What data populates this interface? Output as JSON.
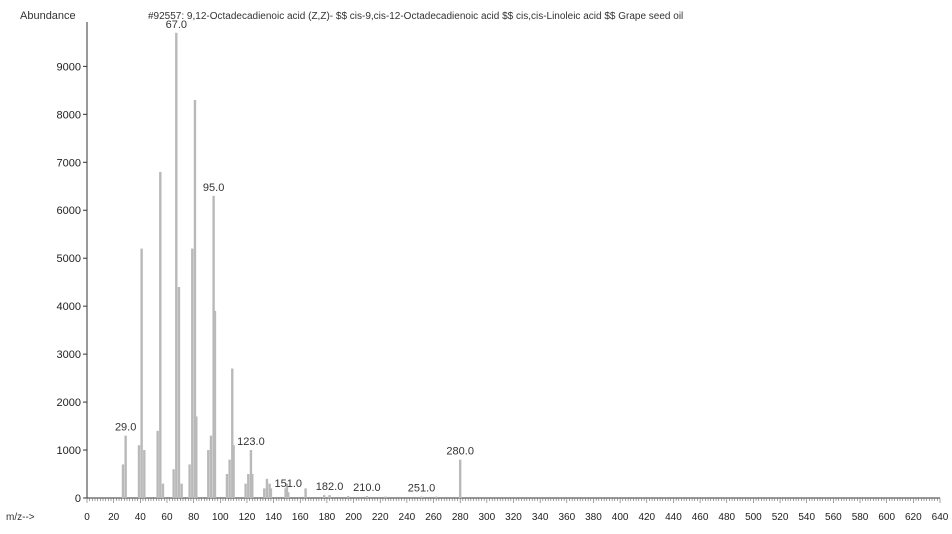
{
  "chart_data": {
    "type": "bar",
    "title": "#92557: 9,12-Octadecadienoic acid (Z,Z)- $$ cis-9,cis-12-Octadecadienoic acid $$ cis,cis-Linoleic acid $$ Grape seed oil",
    "ylabel": "Abundance",
    "xlabel": "m/z-->",
    "xlim": [
      0,
      640
    ],
    "ylim": [
      0,
      9800
    ],
    "x_ticks": [
      0,
      20,
      40,
      60,
      80,
      100,
      120,
      140,
      160,
      180,
      200,
      220,
      240,
      260,
      280,
      300,
      320,
      340,
      360,
      380,
      400,
      420,
      440,
      460,
      480,
      500,
      520,
      540,
      560,
      580,
      600,
      620,
      640
    ],
    "y_ticks": [
      0,
      1000,
      2000,
      3000,
      4000,
      5000,
      6000,
      7000,
      8000,
      9000
    ],
    "grid": false,
    "bar_color": "#b9b9b9",
    "axis_color": "#333333",
    "peaks": [
      {
        "mz": 27,
        "abundance": 700
      },
      {
        "mz": 29,
        "abundance": 1300
      },
      {
        "mz": 39,
        "abundance": 1100
      },
      {
        "mz": 41,
        "abundance": 5200
      },
      {
        "mz": 43,
        "abundance": 1000
      },
      {
        "mz": 53,
        "abundance": 1400
      },
      {
        "mz": 55,
        "abundance": 6800
      },
      {
        "mz": 57,
        "abundance": 300
      },
      {
        "mz": 65,
        "abundance": 600
      },
      {
        "mz": 67,
        "abundance": 9700
      },
      {
        "mz": 69,
        "abundance": 4400
      },
      {
        "mz": 71,
        "abundance": 300
      },
      {
        "mz": 77,
        "abundance": 700
      },
      {
        "mz": 79,
        "abundance": 5200
      },
      {
        "mz": 81,
        "abundance": 8300
      },
      {
        "mz": 82,
        "abundance": 1700
      },
      {
        "mz": 91,
        "abundance": 1000
      },
      {
        "mz": 93,
        "abundance": 1300
      },
      {
        "mz": 95,
        "abundance": 6300
      },
      {
        "mz": 96,
        "abundance": 3900
      },
      {
        "mz": 105,
        "abundance": 500
      },
      {
        "mz": 107,
        "abundance": 800
      },
      {
        "mz": 109,
        "abundance": 2700
      },
      {
        "mz": 110,
        "abundance": 1100
      },
      {
        "mz": 119,
        "abundance": 300
      },
      {
        "mz": 121,
        "abundance": 500
      },
      {
        "mz": 123,
        "abundance": 1000
      },
      {
        "mz": 124,
        "abundance": 500
      },
      {
        "mz": 133,
        "abundance": 200
      },
      {
        "mz": 135,
        "abundance": 400
      },
      {
        "mz": 137,
        "abundance": 300
      },
      {
        "mz": 138,
        "abundance": 200
      },
      {
        "mz": 149,
        "abundance": 200
      },
      {
        "mz": 150,
        "abundance": 300
      },
      {
        "mz": 151,
        "abundance": 120
      },
      {
        "mz": 164,
        "abundance": 200
      },
      {
        "mz": 178,
        "abundance": 60
      },
      {
        "mz": 182,
        "abundance": 60
      },
      {
        "mz": 196,
        "abundance": 40
      },
      {
        "mz": 210,
        "abundance": 40
      },
      {
        "mz": 224,
        "abundance": 30
      },
      {
        "mz": 251,
        "abundance": 30
      },
      {
        "mz": 262,
        "abundance": 30
      },
      {
        "mz": 280,
        "abundance": 800
      }
    ],
    "annotations": [
      {
        "text": "67.0",
        "mz": 67,
        "abundance": 9700
      },
      {
        "text": "95.0",
        "mz": 95,
        "abundance": 6300
      },
      {
        "text": "29.0",
        "mz": 29,
        "abundance": 1300
      },
      {
        "text": "123.0",
        "mz": 123,
        "abundance": 1000
      },
      {
        "text": "151.0",
        "mz": 151,
        "abundance": 120
      },
      {
        "text": "182.0",
        "mz": 182,
        "abundance": 60
      },
      {
        "text": "210.0",
        "mz": 210,
        "abundance": 40
      },
      {
        "text": "251.0",
        "mz": 251,
        "abundance": 30
      },
      {
        "text": "280.0",
        "mz": 280,
        "abundance": 800
      }
    ]
  }
}
